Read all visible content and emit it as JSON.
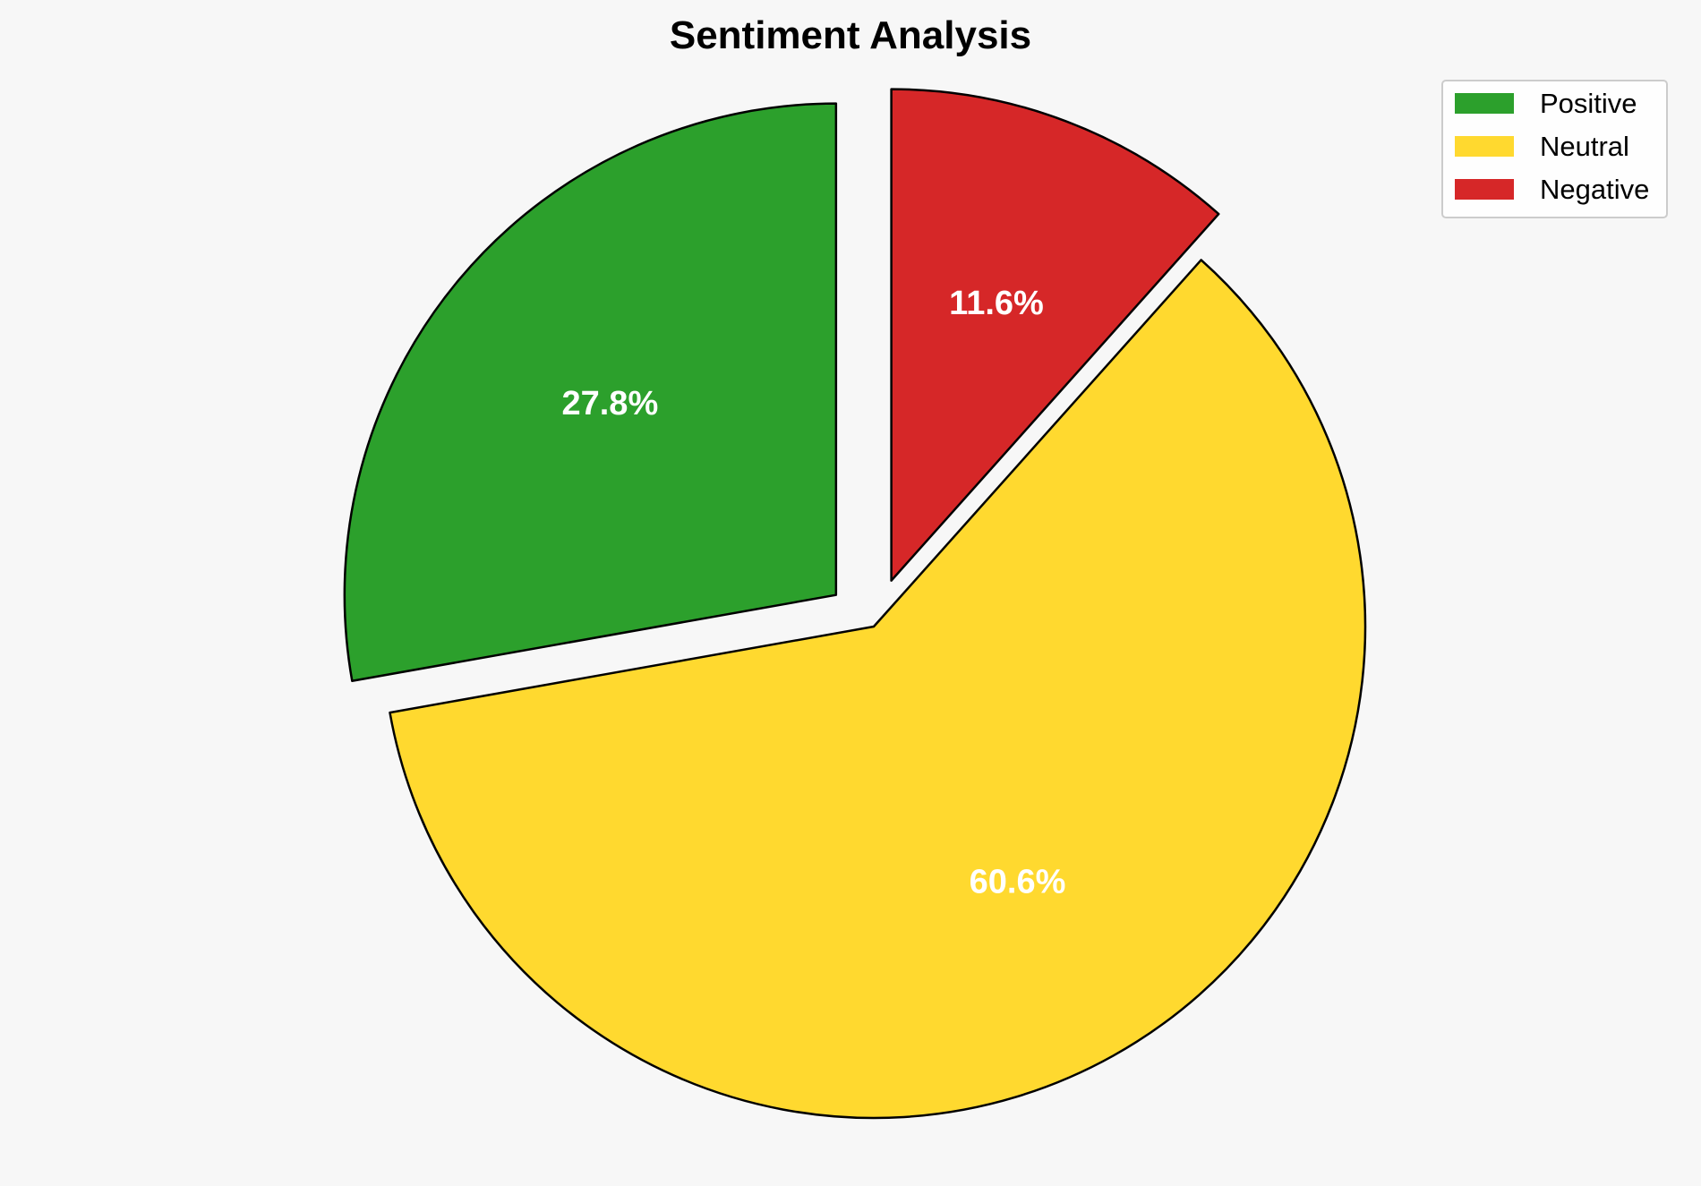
{
  "chart_data": {
    "type": "pie",
    "title": "Sentiment Analysis",
    "start_angle_deg": 90,
    "direction": "counterclockwise",
    "slices": [
      {
        "label": "Positive",
        "value": 27.8,
        "display": "27.8%",
        "color": "#2ca02c",
        "exploded": true
      },
      {
        "label": "Neutral",
        "value": 60.6,
        "display": "60.6%",
        "color": "#ffd92f",
        "exploded": false
      },
      {
        "label": "Negative",
        "value": 11.6,
        "display": "11.6%",
        "color": "#d62728",
        "exploded": true
      }
    ],
    "legend": {
      "position": "top-right",
      "entries": [
        "Positive",
        "Neutral",
        "Negative"
      ]
    },
    "colors": {
      "background": "#f7f7f7",
      "edge": "#000000",
      "label": "#ffffff"
    }
  }
}
